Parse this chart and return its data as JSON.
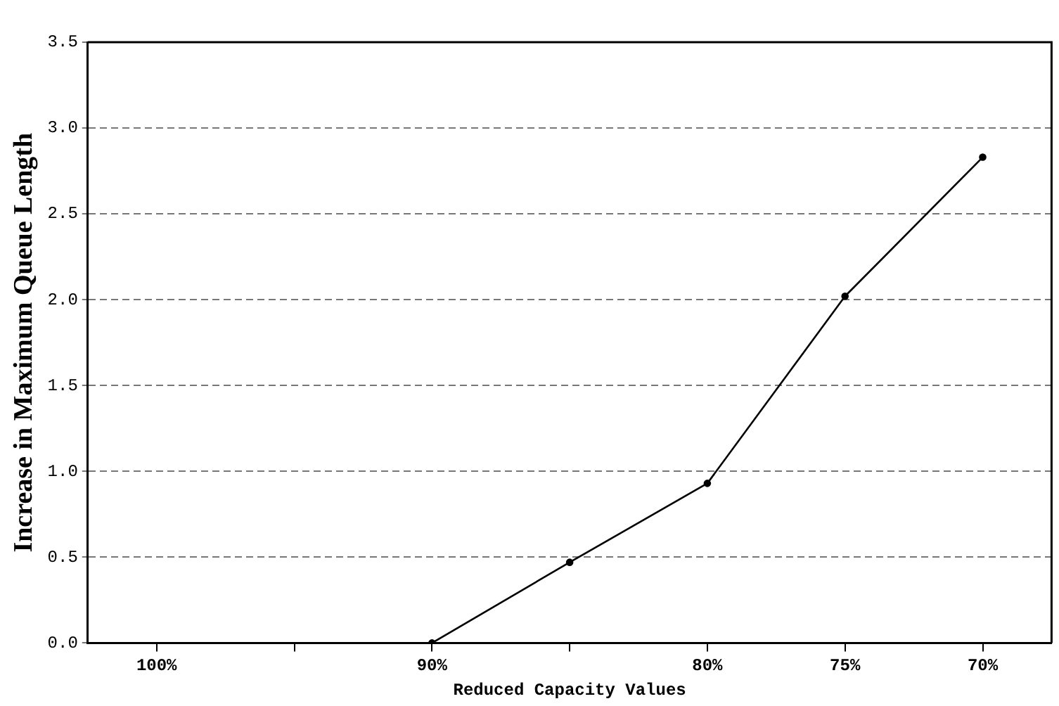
{
  "chart_data": {
    "type": "line",
    "xlabel": "Reduced Capacity Values",
    "ylabel": "Increase in Maximum Queue Length",
    "categories": [
      "100%",
      null,
      "90%",
      null,
      "80%",
      "75%",
      "70%"
    ],
    "series": [
      {
        "color": "#000000",
        "values": [
          null,
          null,
          0.0,
          0.47,
          0.93,
          2.02,
          2.83
        ]
      }
    ],
    "ylim": [
      0,
      3.5
    ],
    "yticks": [
      {
        "value": 0,
        "label": "0.0"
      },
      {
        "value": 0.5,
        "label": "0.5"
      },
      {
        "value": 1,
        "label": "1.0"
      },
      {
        "value": 1.5,
        "label": "1.5"
      },
      {
        "value": 2,
        "label": "2.0"
      },
      {
        "value": 2.5,
        "label": "2.5"
      },
      {
        "value": 3,
        "label": "3.0"
      },
      {
        "value": 3.5,
        "label": "3.5"
      }
    ],
    "grid": "y",
    "legend": false,
    "marker": "circle",
    "line_style": "solid"
  }
}
